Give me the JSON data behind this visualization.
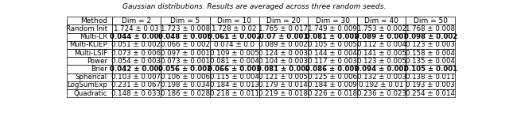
{
  "title": "Gaussian distributions. Results are averaged across three random seeds.",
  "columns": [
    "Method",
    "Dim = 2",
    "Dim = 5",
    "Dim = 10",
    "Dim = 20",
    "Dim = 30",
    "Dim = 40",
    "Dim = 50"
  ],
  "rows": [
    {
      "method": "Random Init",
      "values": [
        "1.724 ± 0.03",
        "1.723 ± 0.008",
        "1.728 ± 0.02",
        "1.765 ± 0.017",
        "1.749 ± 0.009",
        "1.753 ± 0.002",
        "1.768 ± 0.008"
      ],
      "bold": [
        false,
        false,
        false,
        false,
        false,
        false,
        false
      ]
    },
    {
      "method": "Multi-LR",
      "values": [
        "0.044 ± 0.003",
        "0.048 ± 0.005",
        "0.061 ± 0.002",
        "0.07 ± 0.001",
        "0.081 ± 0.002",
        "0.089 ± 0.001",
        "0.098 ± 0.002"
      ],
      "bold": [
        true,
        true,
        true,
        true,
        true,
        true,
        true
      ]
    },
    {
      "method": "Multi-KLIEP",
      "values": [
        "0.051 ± 0.002",
        "0.066 ± 0.002",
        "0.074 ± 0.0",
        "0.089 ± 0.002",
        "0.105 ± 0.005",
        "0.112 ± 0.004",
        "0.123 ± 0.003"
      ],
      "bold": [
        false,
        false,
        false,
        false,
        false,
        false,
        false
      ]
    },
    {
      "method": "Multi-LSIF",
      "values": [
        "0.073 ± 0.006",
        "0.097 ± 0.001",
        "0.109 ± 0.005",
        "0.124 ± 0.003",
        "0.144 ± 0.004",
        "0.141 ± 0.005",
        "0.158 ± 0.004"
      ],
      "bold": [
        false,
        false,
        false,
        false,
        false,
        false,
        false
      ]
    },
    {
      "method": "Power",
      "values": [
        "0.054 ± 0.003",
        "0.073 ± 0.001",
        "0.081 ± 0.004",
        "0.104 ± 0.003",
        "0.117 ± 0.003",
        "0.123 ± 0.005",
        "0.135 ± 0.004"
      ],
      "bold": [
        false,
        false,
        false,
        false,
        false,
        false,
        false
      ]
    },
    {
      "method": "Brier",
      "values": [
        "0.042 ± 0.002",
        "0.056 ± 0.003",
        "0.066 ± 0.003",
        "0.081 ± 0.002",
        "0.086 ± 0.002",
        "0.094 ± 0.002",
        "0.105 ± 0.001"
      ],
      "bold": [
        true,
        true,
        true,
        true,
        true,
        true,
        true
      ]
    },
    {
      "method": "Spherical",
      "values": [
        "0.103 ± 0.007",
        "0.106 ± 0.006",
        "0.115 ± 0.004",
        "0.121 ± 0.005",
        "0.125 ± 0.006",
        "0.132 ± 0.003",
        "0.138 ± 0.011"
      ],
      "bold": [
        false,
        false,
        false,
        false,
        false,
        false,
        false
      ]
    },
    {
      "method": "LogSumExp",
      "values": [
        "0.231 ± 0.067",
        "0.198 ± 0.034",
        "0.184 ± 0.013",
        "0.179 ± 0.014",
        "0.184 ± 0.009",
        "0.192 ± 0.01",
        "0.193 ± 0.003"
      ],
      "bold": [
        false,
        false,
        false,
        false,
        false,
        false,
        false
      ]
    },
    {
      "method": "Quadratic",
      "values": [
        "0.148 ± 0.033",
        "0.186 ± 0.028",
        "0.218 ± 0.011",
        "0.219 ± 0.018",
        "0.226 ± 0.018",
        "0.236 ± 0.023",
        "0.254 ± 0.014"
      ],
      "bold": [
        false,
        false,
        false,
        false,
        false,
        false,
        false
      ]
    }
  ],
  "bg_color": "#f0f0f0",
  "header_bg": "#e0e0e0"
}
